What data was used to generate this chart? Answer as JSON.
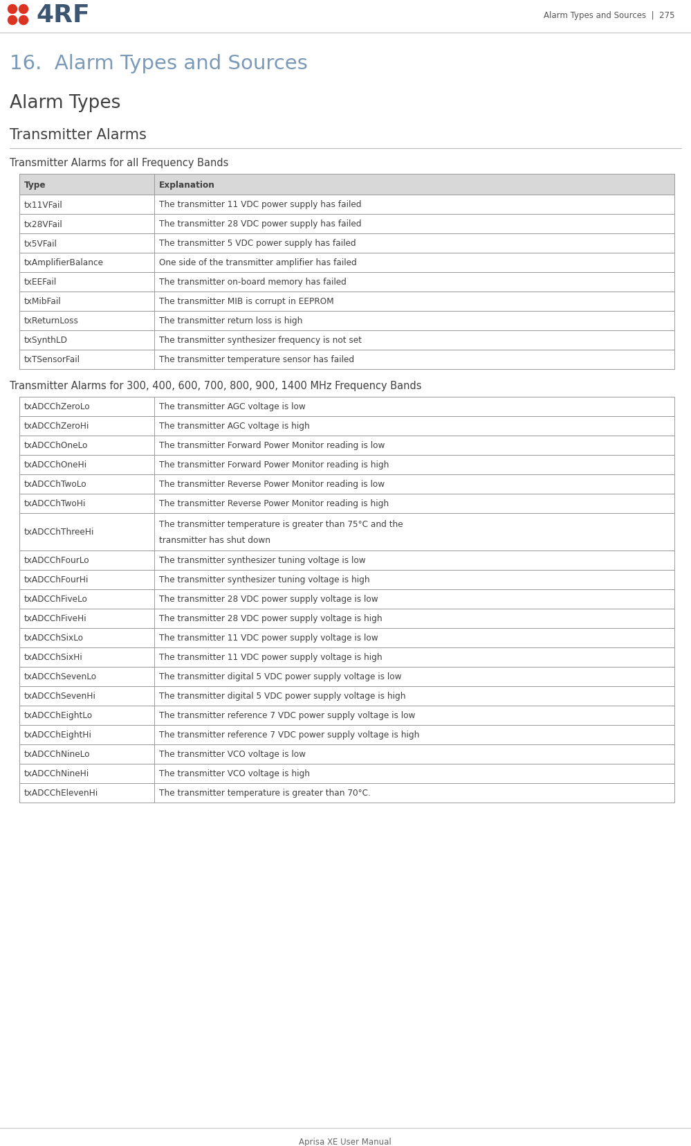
{
  "page_header_right": "Alarm Types and Sources  |  275",
  "page_footer": "Aprisa XE User Manual",
  "chapter_title": "16.  Alarm Types and Sources",
  "section1_title": "Alarm Types",
  "section2_title": "Transmitter Alarms",
  "subsection1_title": "Transmitter Alarms for all Frequency Bands",
  "subsection2_title": "Transmitter Alarms for 300, 400, 600, 700, 800, 900, 1400 MHz Frequency Bands",
  "table1_headers": [
    "Type",
    "Explanation"
  ],
  "table1_rows": [
    [
      "tx11VFail",
      "The transmitter 11 VDC power supply has failed"
    ],
    [
      "tx28VFail",
      "The transmitter 28 VDC power supply has failed"
    ],
    [
      "tx5VFail",
      "The transmitter 5 VDC power supply has failed"
    ],
    [
      "txAmplifierBalance",
      "One side of the transmitter amplifier has failed"
    ],
    [
      "txEEFail",
      "The transmitter on-board memory has failed"
    ],
    [
      "txMibFail",
      "The transmitter MIB is corrupt in EEPROM"
    ],
    [
      "txReturnLoss",
      "The transmitter return loss is high"
    ],
    [
      "txSynthLD",
      "The transmitter synthesizer frequency is not set"
    ],
    [
      "txTSensorFail",
      "The transmitter temperature sensor has failed"
    ]
  ],
  "table2_rows": [
    [
      "txADCChZeroLo",
      "The transmitter AGC voltage is low"
    ],
    [
      "txADCChZeroHi",
      "The transmitter AGC voltage is high"
    ],
    [
      "txADCChOneLo",
      "The transmitter Forward Power Monitor reading is low"
    ],
    [
      "txADCChOneHi",
      "The transmitter Forward Power Monitor reading is high"
    ],
    [
      "txADCChTwoLo",
      "The transmitter Reverse Power Monitor reading is low"
    ],
    [
      "txADCChTwoHi",
      "The transmitter Reverse Power Monitor reading is high"
    ],
    [
      "txADCChThreeHi",
      "The transmitter temperature is greater than 75°C and the\ntransmitter has shut down"
    ],
    [
      "txADCChFourLo",
      "The transmitter synthesizer tuning voltage is low"
    ],
    [
      "txADCChFourHi",
      "The transmitter synthesizer tuning voltage is high"
    ],
    [
      "txADCChFiveLo",
      "The transmitter 28 VDC power supply voltage is low"
    ],
    [
      "txADCChFiveHi",
      "The transmitter 28 VDC power supply voltage is high"
    ],
    [
      "txADCChSixLo",
      "The transmitter 11 VDC power supply voltage is low"
    ],
    [
      "txADCChSixHi",
      "The transmitter 11 VDC power supply voltage is high"
    ],
    [
      "txADCChSevenLo",
      "The transmitter digital 5 VDC power supply voltage is low"
    ],
    [
      "txADCChSevenHi",
      "The transmitter digital 5 VDC power supply voltage is high"
    ],
    [
      "txADCChEightLo",
      "The transmitter reference 7 VDC power supply voltage is low"
    ],
    [
      "txADCChEightHi",
      "The transmitter reference 7 VDC power supply voltage is high"
    ],
    [
      "txADCChNineLo",
      "The transmitter VCO voltage is low"
    ],
    [
      "txADCChNineHi",
      "The transmitter VCO voltage is high"
    ],
    [
      "txADCChElevenHi",
      "The transmitter temperature is greater than 70°C."
    ]
  ],
  "bg_color": "#ffffff",
  "text_color": "#404040",
  "table_border_color": "#888888",
  "table_header_bg": "#e8e8e8",
  "chapter_color": "#7a9ab8",
  "section1_color": "#404040",
  "section2_color": "#404040",
  "logo_dot_color": "#dd3322",
  "logo_text_color": "#3c5570",
  "header_text_color": "#555555",
  "subsection_color": "#404040",
  "footer_color": "#666666"
}
